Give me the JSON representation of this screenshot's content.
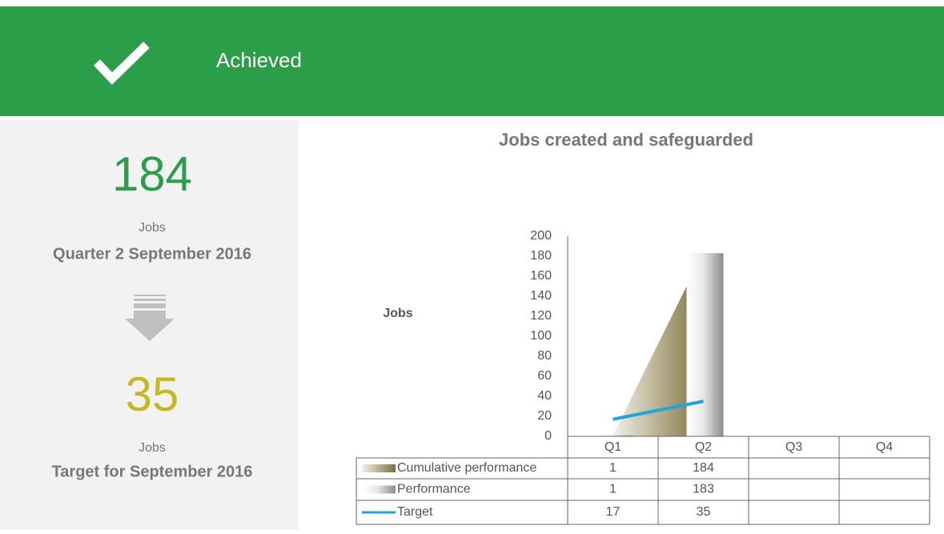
{
  "banner": {
    "status": "Achieved"
  },
  "summary": {
    "actual": {
      "value": 184,
      "unit": "Jobs",
      "period": "Quarter 2 September 2016"
    },
    "target": {
      "value": 35,
      "unit": "Jobs",
      "period": "Target for September 2016"
    }
  },
  "chart_data": {
    "type": "combo",
    "title": "Jobs created and safeguarded",
    "y_label": "Jobs",
    "categories": [
      "Q1",
      "Q2",
      "Q3",
      "Q4"
    ],
    "ylim": [
      0,
      200
    ],
    "yticks": [
      0,
      20,
      40,
      60,
      80,
      100,
      120,
      140,
      160,
      180,
      200
    ],
    "grid": false,
    "series": [
      {
        "name": "Cumulative performance",
        "type": "area",
        "color": "#8b7d4a",
        "values": [
          1,
          184,
          null,
          null
        ]
      },
      {
        "name": "Performance",
        "type": "bar",
        "color": "#9a9a9a",
        "values": [
          1,
          183,
          null,
          null
        ]
      },
      {
        "name": "Target",
        "type": "line",
        "color": "#1aa7e0",
        "values": [
          17,
          35,
          null,
          null
        ]
      }
    ]
  }
}
